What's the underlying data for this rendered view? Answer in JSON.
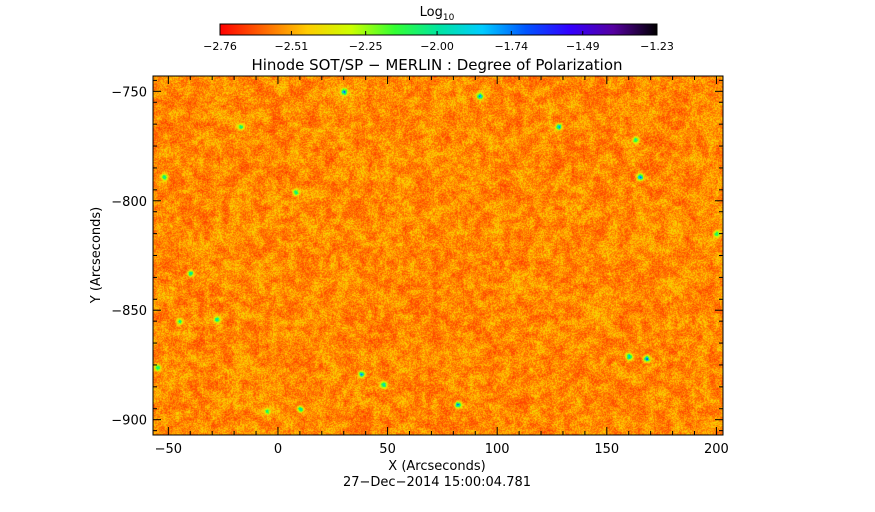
{
  "chart_data": {
    "type": "heatmap",
    "title": "Hinode SOT/SP − MERLIN : Degree of Polarization",
    "xlabel": "X (Arcseconds)",
    "ylabel": "Y (Arcseconds)",
    "xlim": [
      -57,
      203
    ],
    "ylim": [
      -907,
      -743
    ],
    "x_ticks": [
      -50,
      0,
      50,
      100,
      150,
      200
    ],
    "x_tick_labels": [
      "−50",
      "0",
      "50",
      "100",
      "150",
      "200"
    ],
    "y_ticks": [
      -750,
      -800,
      -850,
      -900
    ],
    "y_tick_labels": [
      "−750",
      "−800",
      "−850",
      "−900"
    ],
    "timestamp": "27−Dec−2014 15:00:04.781",
    "colorbar": {
      "label_main": "Log",
      "label_sub": "10",
      "range": [
        -2.76,
        -1.23
      ],
      "ticks": [
        -2.76,
        -2.51,
        -2.25,
        -2.0,
        -1.74,
        -1.49,
        -1.23
      ],
      "tick_labels": [
        "−2.76",
        "−2.51",
        "−2.25",
        "−2.00",
        "−1.74",
        "−1.49",
        "−1.23"
      ],
      "colormap": [
        "#ff0000",
        "#ff6600",
        "#ffcc00",
        "#ccff00",
        "#33ff33",
        "#00e5a0",
        "#00ccff",
        "#0055ff",
        "#3300ff",
        "#55009f",
        "#000000"
      ]
    },
    "dominant_value_range": [
      -2.68,
      -2.38
    ],
    "notable_features": [
      {
        "x": -17,
        "y": -766,
        "value": -1.85
      },
      {
        "x": 30,
        "y": -750,
        "value": -1.55
      },
      {
        "x": 92,
        "y": -752,
        "value": -1.6
      },
      {
        "x": 128,
        "y": -766,
        "value": -1.6
      },
      {
        "x": 163,
        "y": -772,
        "value": -1.85
      },
      {
        "x": 165,
        "y": -789,
        "value": -1.55
      },
      {
        "x": -52,
        "y": -789,
        "value": -1.85
      },
      {
        "x": 8,
        "y": -796,
        "value": -1.8
      },
      {
        "x": -40,
        "y": -833,
        "value": -1.8
      },
      {
        "x": -45,
        "y": -855,
        "value": -1.9
      },
      {
        "x": -28,
        "y": -854,
        "value": -1.8
      },
      {
        "x": -55,
        "y": -876,
        "value": -1.85
      },
      {
        "x": 38,
        "y": -879,
        "value": -1.6
      },
      {
        "x": 48,
        "y": -884,
        "value": -1.7
      },
      {
        "x": 82,
        "y": -893,
        "value": -1.55
      },
      {
        "x": 10,
        "y": -895,
        "value": -1.8
      },
      {
        "x": 160,
        "y": -871,
        "value": -1.6
      },
      {
        "x": 168,
        "y": -872,
        "value": -1.55
      },
      {
        "x": -5,
        "y": -896,
        "value": -1.9
      },
      {
        "x": 200,
        "y": -815,
        "value": -1.9
      }
    ]
  }
}
